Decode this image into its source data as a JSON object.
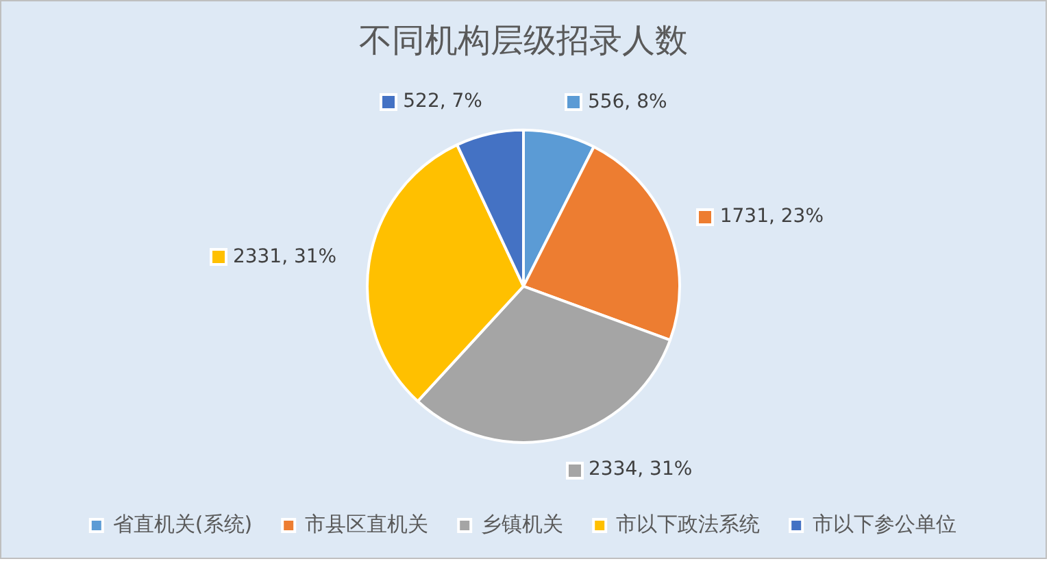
{
  "chart_data": {
    "type": "pie",
    "title": "不同机构层级招录人数",
    "categories": [
      "省直机关(系统)",
      "市县区直机关",
      "乡镇机关",
      "市以下政法系统",
      "市以下参公单位"
    ],
    "values": [
      556,
      1731,
      2334,
      2331,
      522
    ],
    "value_labels": [
      "556, 8%",
      "1731, 23%",
      "2334, 31%",
      "2331, 31%",
      "522, 7%"
    ],
    "colors": [
      "#5b9bd5",
      "#ed7d31",
      "#a5a5a5",
      "#ffc000",
      "#4472c4"
    ],
    "legend": "bottom"
  }
}
